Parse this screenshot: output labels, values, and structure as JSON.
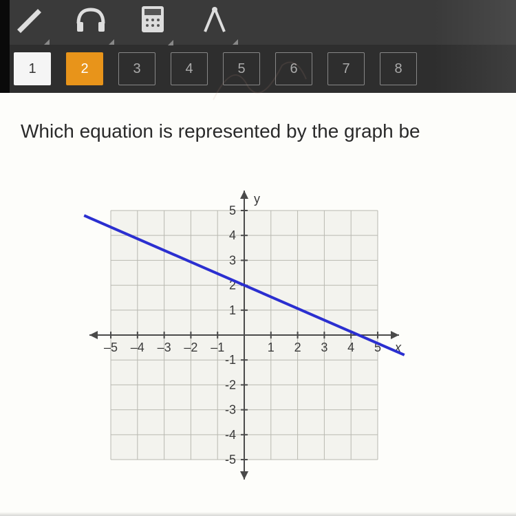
{
  "toolbar": {
    "icons": [
      "pencil-icon",
      "headphones-icon",
      "calculator-icon",
      "compass-icon"
    ]
  },
  "nav": {
    "items": [
      {
        "label": "1",
        "state": "active-white"
      },
      {
        "label": "2",
        "state": "active-orange"
      },
      {
        "label": "3",
        "state": ""
      },
      {
        "label": "4",
        "state": ""
      },
      {
        "label": "5",
        "state": ""
      },
      {
        "label": "6",
        "state": ""
      },
      {
        "label": "7",
        "state": ""
      },
      {
        "label": "8",
        "state": ""
      }
    ]
  },
  "question_text": "Which equation is represented by the graph be",
  "chart": {
    "type": "line",
    "x_axis_label": "x",
    "y_axis_label": "y",
    "xlim": [
      -5.8,
      5.8
    ],
    "ylim": [
      -5.8,
      5.8
    ],
    "xtick_min": -5,
    "xtick_max": 5,
    "xtick_step": 1,
    "ytick_min": -5,
    "ytick_max": 5,
    "ytick_step": 1,
    "grid_color": "#b8b8b0",
    "axis_color": "#4a4a4a",
    "background_color": "#fdfdfa",
    "grid_inner_bg": "#f3f3ee",
    "tick_font_size": 18,
    "tick_font_color": "#3a3a3a",
    "line": {
      "color": "#2b2fd0",
      "width": 4,
      "points": [
        [
          -6,
          4.8
        ],
        [
          6,
          -0.8
        ]
      ]
    },
    "x_tick_labels": {
      "-5": "–5",
      "-4": "–4",
      "-3": "–3",
      "-2": "–2",
      "-1": "–1",
      "1": "1",
      "2": "2",
      "3": "3",
      "4": "4",
      "5": "5"
    },
    "y_tick_labels": {
      "5": "5",
      "4": "4",
      "3": "3",
      "2": "2",
      "1": "1",
      "-1": "-1",
      "-2": "-2",
      "-3": "-3",
      "-4": "-4",
      "-5": "-5"
    }
  }
}
